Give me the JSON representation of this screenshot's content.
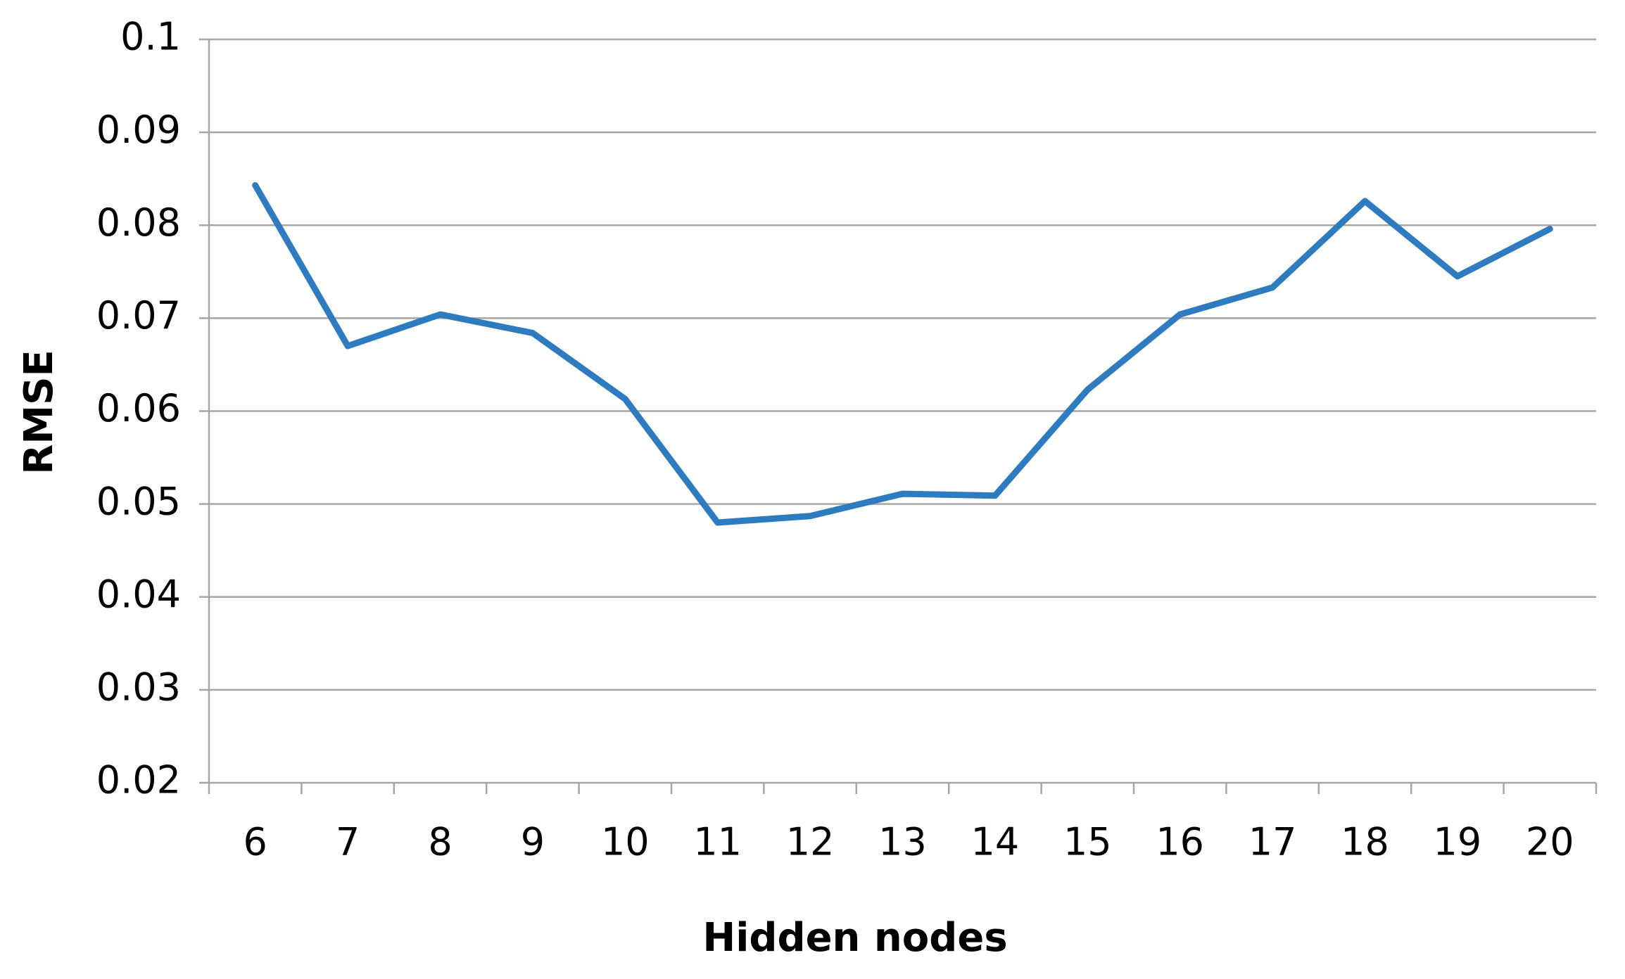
{
  "chart_data": {
    "type": "line",
    "x_label": "Hidden nodes",
    "y_label": "RMSE",
    "categories": [
      "6",
      "7",
      "8",
      "9",
      "10",
      "11",
      "12",
      "13",
      "14",
      "15",
      "16",
      "17",
      "18",
      "19",
      "20"
    ],
    "series": [
      {
        "color": "#2e7bbf",
        "values": [
          0.0843,
          0.067,
          0.0704,
          0.0684,
          0.0613,
          0.048,
          0.0487,
          0.0511,
          0.0509,
          0.0623,
          0.0704,
          0.0733,
          0.0826,
          0.0745,
          0.0796
        ]
      }
    ],
    "ylim": [
      0.02,
      0.1
    ],
    "yticks": [
      0.02,
      0.03,
      0.04,
      0.05,
      0.06,
      0.07,
      0.08,
      0.09,
      0.1
    ],
    "grid": true
  }
}
